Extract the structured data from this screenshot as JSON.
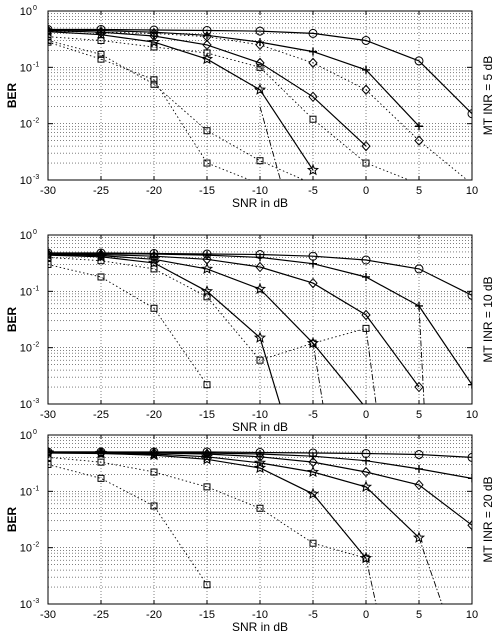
{
  "chart_data": [
    {
      "type": "line",
      "ylabel": "BER",
      "xlabel": "SNR in dB",
      "side_label": "MT INR = 5 dB",
      "xlim": [
        -30,
        10
      ],
      "ylim": [
        0.001,
        1
      ],
      "yscale": "log",
      "grid": true,
      "x_ticks": [
        -30,
        -25,
        -20,
        -15,
        -10,
        -5,
        0,
        5,
        10
      ],
      "x_tick_labels": [
        "-30",
        "-25",
        "-20",
        "-15",
        "-10",
        "-5",
        "0",
        "5",
        "10"
      ],
      "y_tick_labels": [
        {
          "base": "10",
          "exp": "0"
        },
        {
          "base": "10",
          "exp": "-1"
        },
        {
          "base": "10",
          "exp": "-2"
        },
        {
          "base": "10",
          "exp": "-3"
        }
      ],
      "series": [
        {
          "marker": "circle",
          "style": "solid",
          "x": [
            -30,
            -25,
            -20,
            -15,
            -10,
            -5,
            0,
            5,
            10
          ],
          "y": [
            0.47,
            0.47,
            0.46,
            0.45,
            0.44,
            0.4,
            0.3,
            0.13,
            0.015
          ]
        },
        {
          "marker": "plus",
          "style": "solid",
          "x": [
            -30,
            -25,
            -20,
            -15,
            -10,
            -5,
            0,
            5
          ],
          "y": [
            0.46,
            0.45,
            0.42,
            0.37,
            0.28,
            0.19,
            0.09,
            0.009
          ]
        },
        {
          "marker": "diamond",
          "style": "solid",
          "x": [
            -30,
            -25,
            -20,
            -15,
            -10,
            -5,
            0
          ],
          "y": [
            0.45,
            0.42,
            0.36,
            0.25,
            0.12,
            0.03,
            0.004
          ]
        },
        {
          "marker": "star",
          "style": "solid",
          "x": [
            -30,
            -25,
            -20,
            -15,
            -10,
            -5
          ],
          "y": [
            0.43,
            0.38,
            0.28,
            0.14,
            0.04,
            0.0015
          ]
        },
        {
          "marker": "diamond",
          "style": "dotted",
          "x": [
            -30,
            -25,
            -20,
            -15,
            -10,
            -5,
            0,
            5,
            10
          ],
          "y": [
            0.44,
            0.42,
            0.4,
            0.35,
            0.25,
            0.12,
            0.04,
            0.005,
            0.0008
          ]
        },
        {
          "marker": "square",
          "style": "dotted",
          "x": [
            -30,
            -25,
            -20,
            -15,
            -10,
            -5,
            0,
            5
          ],
          "y": [
            0.35,
            0.3,
            0.23,
            0.18,
            0.1,
            0.012,
            0.002,
            0.0008
          ]
        },
        {
          "marker": "square",
          "style": "dotted",
          "x": [
            -30,
            -25,
            -20,
            -15,
            -10,
            -5
          ],
          "y": [
            0.3,
            0.17,
            0.05,
            0.0075,
            0.0022,
            0.0008
          ]
        },
        {
          "marker": "square",
          "style": "dotted",
          "x": [
            -30,
            -25,
            -20,
            -15,
            -10
          ],
          "y": [
            0.28,
            0.14,
            0.06,
            0.002,
            0.0008
          ]
        },
        {
          "marker": "none",
          "style": "dashdot",
          "x": [
            -10,
            -8
          ],
          "y": [
            0.02,
            0.0009
          ]
        }
      ]
    },
    {
      "type": "line",
      "ylabel": "BER",
      "xlabel": "SNR in dB",
      "side_label": "MT INR = 10 dB",
      "xlim": [
        -30,
        10
      ],
      "ylim": [
        0.001,
        1
      ],
      "yscale": "log",
      "grid": true,
      "x_ticks": [
        -30,
        -25,
        -20,
        -15,
        -10,
        -5,
        0,
        5,
        10
      ],
      "x_tick_labels": [
        "-30",
        "-25",
        "-20",
        "-15",
        "-10",
        "-5",
        "0",
        "5",
        "10"
      ],
      "y_tick_labels": [
        {
          "base": "10",
          "exp": "0"
        },
        {
          "base": "10",
          "exp": "-1"
        },
        {
          "base": "10",
          "exp": "-2"
        },
        {
          "base": "10",
          "exp": "-3"
        }
      ],
      "series": [
        {
          "marker": "circle",
          "style": "solid",
          "x": [
            -30,
            -25,
            -20,
            -15,
            -10,
            -5,
            0,
            5,
            10
          ],
          "y": [
            0.48,
            0.48,
            0.47,
            0.46,
            0.45,
            0.42,
            0.36,
            0.25,
            0.085
          ]
        },
        {
          "marker": "plus",
          "style": "solid",
          "x": [
            -30,
            -25,
            -20,
            -15,
            -10,
            -5,
            0,
            5,
            10
          ],
          "y": [
            0.47,
            0.47,
            0.46,
            0.44,
            0.4,
            0.31,
            0.18,
            0.055,
            0.0022
          ]
        },
        {
          "marker": "diamond",
          "style": "solid",
          "x": [
            -30,
            -25,
            -20,
            -15,
            -10,
            -5,
            0,
            5
          ],
          "y": [
            0.46,
            0.45,
            0.42,
            0.37,
            0.27,
            0.14,
            0.038,
            0.002
          ]
        },
        {
          "marker": "star",
          "style": "solid",
          "x": [
            -30,
            -25,
            -20,
            -15,
            -10,
            -5,
            0
          ],
          "y": [
            0.45,
            0.43,
            0.37,
            0.25,
            0.11,
            0.012,
            0.0008
          ]
        },
        {
          "marker": "star",
          "style": "solid",
          "x": [
            -30,
            -25,
            -20,
            -15,
            -10,
            -8
          ],
          "y": [
            0.44,
            0.41,
            0.32,
            0.1,
            0.015,
            0.0008
          ]
        },
        {
          "marker": "square",
          "style": "dotted",
          "x": [
            -30,
            -25,
            -20,
            -15,
            -10,
            -5,
            0
          ],
          "y": [
            0.4,
            0.35,
            0.25,
            0.08,
            0.006,
            0.012,
            0.022
          ]
        },
        {
          "marker": "square",
          "style": "dotted",
          "x": [
            -30,
            -25,
            -20,
            -15
          ],
          "y": [
            0.3,
            0.18,
            0.05,
            0.0022
          ]
        },
        {
          "marker": "none",
          "style": "dashdot",
          "x": [
            -5,
            -4
          ],
          "y": [
            0.012,
            0.0008
          ]
        },
        {
          "marker": "none",
          "style": "dashdot",
          "x": [
            0,
            1
          ],
          "y": [
            0.022,
            0.0008
          ]
        },
        {
          "marker": "none",
          "style": "dashdot",
          "x": [
            5,
            5.5
          ],
          "y": [
            0.055,
            0.0008
          ]
        }
      ]
    },
    {
      "type": "line",
      "ylabel": "BER",
      "xlabel": "SNR in dB",
      "side_label": "MT INR = 20 dB",
      "xlim": [
        -30,
        10
      ],
      "ylim": [
        0.001,
        1
      ],
      "yscale": "log",
      "grid": true,
      "x_ticks": [
        -30,
        -25,
        -20,
        -15,
        -10,
        -5,
        0,
        5,
        10
      ],
      "x_tick_labels": [
        "-30",
        "-25",
        "-20",
        "-15",
        "-10",
        "-5",
        "0",
        "5",
        "10"
      ],
      "y_tick_labels": [
        {
          "base": "10",
          "exp": "0"
        },
        {
          "base": "10",
          "exp": "-1"
        },
        {
          "base": "10",
          "exp": "-2"
        },
        {
          "base": "10",
          "exp": "-3"
        }
      ],
      "series": [
        {
          "marker": "circle",
          "style": "solid",
          "x": [
            -30,
            -25,
            -20,
            -15,
            -10,
            -5,
            0,
            5,
            10
          ],
          "y": [
            0.5,
            0.5,
            0.5,
            0.5,
            0.49,
            0.48,
            0.47,
            0.45,
            0.4
          ]
        },
        {
          "marker": "plus",
          "style": "solid",
          "x": [
            -30,
            -25,
            -20,
            -15,
            -10,
            -5,
            0,
            5,
            10
          ],
          "y": [
            0.5,
            0.5,
            0.49,
            0.48,
            0.46,
            0.42,
            0.35,
            0.25,
            0.17
          ]
        },
        {
          "marker": "diamond",
          "style": "solid",
          "x": [
            -30,
            -25,
            -20,
            -15,
            -10,
            -5,
            0,
            5,
            10
          ],
          "y": [
            0.49,
            0.49,
            0.48,
            0.46,
            0.41,
            0.33,
            0.22,
            0.13,
            0.025
          ]
        },
        {
          "marker": "star",
          "style": "solid",
          "x": [
            -30,
            -25,
            -20,
            -15,
            -10,
            -5,
            0,
            5
          ],
          "y": [
            0.49,
            0.48,
            0.46,
            0.41,
            0.32,
            0.22,
            0.12,
            0.015
          ]
        },
        {
          "marker": "star",
          "style": "solid",
          "x": [
            -30,
            -25,
            -20,
            -15,
            -10,
            -5,
            0
          ],
          "y": [
            0.48,
            0.47,
            0.44,
            0.37,
            0.26,
            0.09,
            0.0065
          ]
        },
        {
          "marker": "square",
          "style": "dotted",
          "x": [
            -30,
            -25,
            -20,
            -15,
            -10,
            -5,
            0
          ],
          "y": [
            0.4,
            0.33,
            0.22,
            0.12,
            0.05,
            0.012,
            0.0065
          ]
        },
        {
          "marker": "square",
          "style": "dotted",
          "x": [
            -30,
            -25,
            -20,
            -15
          ],
          "y": [
            0.3,
            0.17,
            0.055,
            0.0022
          ]
        },
        {
          "marker": "none",
          "style": "dashdot",
          "x": [
            0,
            1
          ],
          "y": [
            0.0065,
            0.0009
          ]
        },
        {
          "marker": "none",
          "style": "dashdot",
          "x": [
            5,
            7.3
          ],
          "y": [
            0.015,
            0.0008
          ]
        }
      ]
    }
  ]
}
